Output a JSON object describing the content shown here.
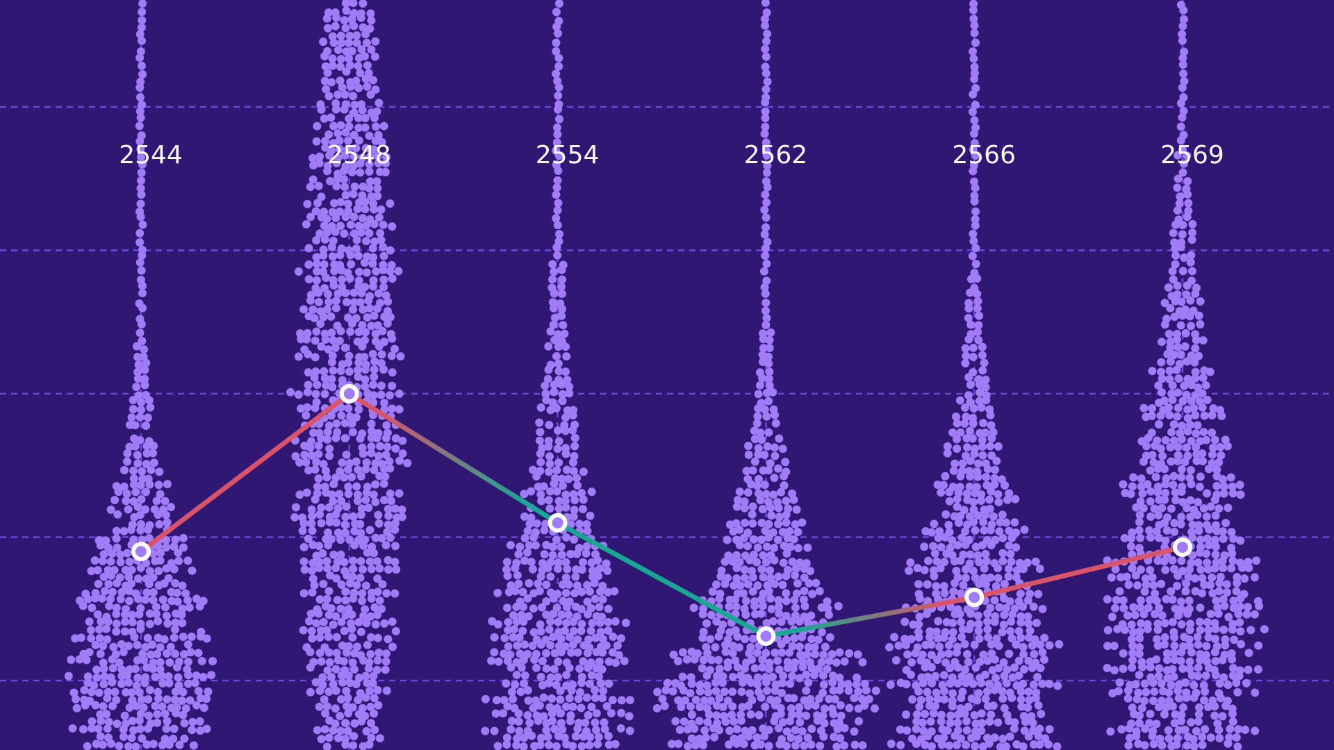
{
  "chart_data": {
    "type": "line",
    "categories": [
      "2544",
      "2548",
      "2554",
      "2562",
      "2566",
      "2569"
    ],
    "values": [
      0.9,
      2.0,
      1.1,
      0.31,
      0.58,
      0.93
    ],
    "ylim": [
      0,
      4
    ],
    "color_rise": "#d9546a",
    "color_fall": "#19a794",
    "dot_color": "#a07cf8",
    "grid": true
  }
}
